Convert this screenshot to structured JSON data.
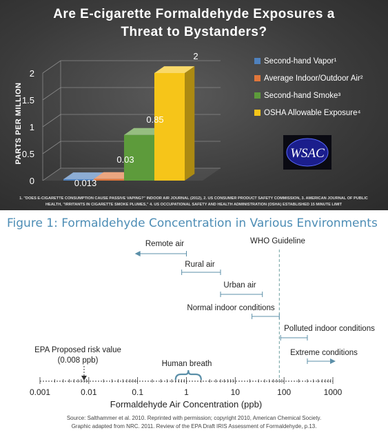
{
  "chart_data": [
    {
      "type": "bar",
      "title_line1": "Are E-cigarette Formaldehyde Exposures a",
      "title_line2": "Threat to Bystanders?",
      "ylabel": "PARTS PER MILLION",
      "ylim": [
        0,
        2
      ],
      "yticks": [
        "0",
        "0.5",
        "1",
        "1.5",
        "2"
      ],
      "series": [
        {
          "name": "Second-hand Vapor¹",
          "value": 0.013,
          "label": "0.013",
          "color": "#4f81bd"
        },
        {
          "name": "Average Indoor/Outdoor Air²",
          "value": 0.03,
          "label": "0.03",
          "color": "#e0763b"
        },
        {
          "name": "Second-hand Smoke³",
          "value": 0.85,
          "label": "0.85",
          "color": "#5d9b3b"
        },
        {
          "name": "OSHA Allowable Exposure⁴",
          "value": 2,
          "label": "2",
          "color": "#f6c519"
        }
      ],
      "legend_position": "right",
      "logo_text": "WSAC",
      "footnote_line1": "1. \"DOES E-CIGARETTE CONSUMPTION CAUSE PASSIVE VAPING?\" INDOOR AIR JOURNAL (2012), 2. US CONSUMER PRODUCT SAFETY COMMISSION, 3. AMERICAN JOURNAL OF PUBLIC",
      "footnote_line2": "HEALTH, \"IRRITANTS IN CIGARETTE SMOKE PLUMES,\" 4. US OCCUPATIONAL SAFETY AND HEALTH ADMINISTRATION (OSHA) ESTABLISHED 15 MINUTE LIMIT",
      "colors": {
        "background": "#3c3c3c",
        "text": "#ffffff"
      }
    },
    {
      "type": "range",
      "title": "Figure 1: Formaldehyde Concentration in Various Environments",
      "xlabel": "Formaldehyde Air Concentration (ppb)",
      "xscale": "log",
      "xlim": [
        0.001,
        1000
      ],
      "xticks": [
        {
          "value": 0.001,
          "label": "0.001"
        },
        {
          "value": 0.01,
          "label": "0.01"
        },
        {
          "value": 0.1,
          "label": "0.1"
        },
        {
          "value": 1,
          "label": "1"
        },
        {
          "value": 10,
          "label": "10"
        },
        {
          "value": 100,
          "label": "100"
        },
        {
          "value": 1000,
          "label": "1000"
        }
      ],
      "ranges": [
        {
          "label": "Remote air",
          "from": 1,
          "to": 0.1,
          "arrow": "left"
        },
        {
          "label": "Rural air",
          "from": 0.8,
          "to": 5,
          "arrow": "none"
        },
        {
          "label": "Urban air",
          "from": 5,
          "to": 36,
          "arrow": "none"
        },
        {
          "label": "Normal indoor conditions",
          "from": 22,
          "to": 80,
          "arrow": "none"
        },
        {
          "label": "Polluted indoor conditions",
          "from": 85,
          "to": 300,
          "arrow": "none"
        },
        {
          "label": "Extreme conditions",
          "from": 300,
          "to": 1000,
          "arrow": "right"
        }
      ],
      "guideline": {
        "label": "WHO Guideline",
        "value": 80
      },
      "risk_value": {
        "label_line1": "EPA Proposed risk value",
        "label_line2": "(0.008 ppb)",
        "value": 0.008
      },
      "human_breath": {
        "label": "Human breath",
        "from": 0.6,
        "to": 2
      },
      "source_line1": "Source: Salthammer et al. 2010. Reprinted with permission; copyright 2010, American Chemical Society.",
      "source_line2": "Graphic adapted from NRC. 2011. Review of the EPA Draft IRIS Assessment of Formaldehyde, p.13.",
      "colors": {
        "title": "#4d8db5",
        "range": "#5b8fa8",
        "guideline": "#6b9e9e",
        "text": "#222222"
      }
    }
  ]
}
